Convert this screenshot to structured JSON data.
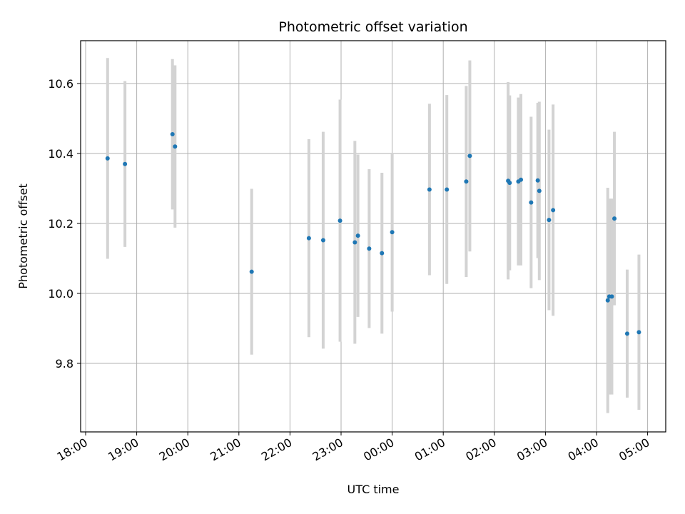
{
  "chart_data": {
    "type": "scatter",
    "title": "Photometric offset variation",
    "xlabel": "UTC time",
    "ylabel": "Photometric offset",
    "x_tick_labels": [
      "18:00",
      "19:00",
      "20:00",
      "21:00",
      "22:00",
      "23:00",
      "00:00",
      "01:00",
      "02:00",
      "03:00",
      "04:00",
      "05:00"
    ],
    "y_ticks": [
      9.8,
      10.0,
      10.2,
      10.4,
      10.6
    ],
    "y_tick_labels": [
      "9.8",
      "10.0",
      "10.2",
      "10.4",
      "10.6"
    ],
    "x_unit": "hours since 18:00 UTC",
    "xlim": [
      -0.1,
      11.4
    ],
    "ylim": [
      9.61,
      10.73
    ],
    "grid": true,
    "colors": {
      "marker": "#1f77b4",
      "errorbar": "#d3d3d3",
      "grid": "#b0b0b0",
      "axis": "#000000"
    },
    "points": [
      {
        "x": 0.43,
        "y": 10.386,
        "err": 0.287
      },
      {
        "x": 0.77,
        "y": 10.37,
        "err": 0.237
      },
      {
        "x": 1.7,
        "y": 10.455,
        "err": 0.215
      },
      {
        "x": 1.75,
        "y": 10.42,
        "err": 0.232
      },
      {
        "x": 3.25,
        "y": 10.062,
        "err": 0.237
      },
      {
        "x": 4.37,
        "y": 10.158,
        "err": 0.283
      },
      {
        "x": 4.65,
        "y": 10.152,
        "err": 0.31
      },
      {
        "x": 4.98,
        "y": 10.208,
        "err": 0.346
      },
      {
        "x": 5.27,
        "y": 10.146,
        "err": 0.29
      },
      {
        "x": 5.33,
        "y": 10.165,
        "err": 0.232
      },
      {
        "x": 5.55,
        "y": 10.128,
        "err": 0.227
      },
      {
        "x": 5.8,
        "y": 10.115,
        "err": 0.23
      },
      {
        "x": 6.0,
        "y": 10.175,
        "err": 0.227
      },
      {
        "x": 6.73,
        "y": 10.297,
        "err": 0.245
      },
      {
        "x": 7.07,
        "y": 10.297,
        "err": 0.27
      },
      {
        "x": 7.45,
        "y": 10.32,
        "err": 0.273
      },
      {
        "x": 7.52,
        "y": 10.393,
        "err": 0.273
      },
      {
        "x": 8.27,
        "y": 10.322,
        "err": 0.282
      },
      {
        "x": 8.3,
        "y": 10.316,
        "err": 0.25
      },
      {
        "x": 8.47,
        "y": 10.32,
        "err": 0.24
      },
      {
        "x": 8.52,
        "y": 10.325,
        "err": 0.245
      },
      {
        "x": 8.72,
        "y": 10.26,
        "err": 0.245
      },
      {
        "x": 8.85,
        "y": 10.323,
        "err": 0.222
      },
      {
        "x": 8.88,
        "y": 10.293,
        "err": 0.255
      },
      {
        "x": 9.07,
        "y": 10.21,
        "err": 0.258
      },
      {
        "x": 9.15,
        "y": 10.238,
        "err": 0.302
      },
      {
        "x": 10.22,
        "y": 9.98,
        "err": 0.322
      },
      {
        "x": 10.25,
        "y": 9.991,
        "err": 0.28
      },
      {
        "x": 10.3,
        "y": 9.991,
        "err": 0.28
      },
      {
        "x": 10.35,
        "y": 10.214,
        "err": 0.248
      },
      {
        "x": 10.6,
        "y": 9.885,
        "err": 0.183
      },
      {
        "x": 10.83,
        "y": 9.889,
        "err": 0.222
      }
    ]
  }
}
